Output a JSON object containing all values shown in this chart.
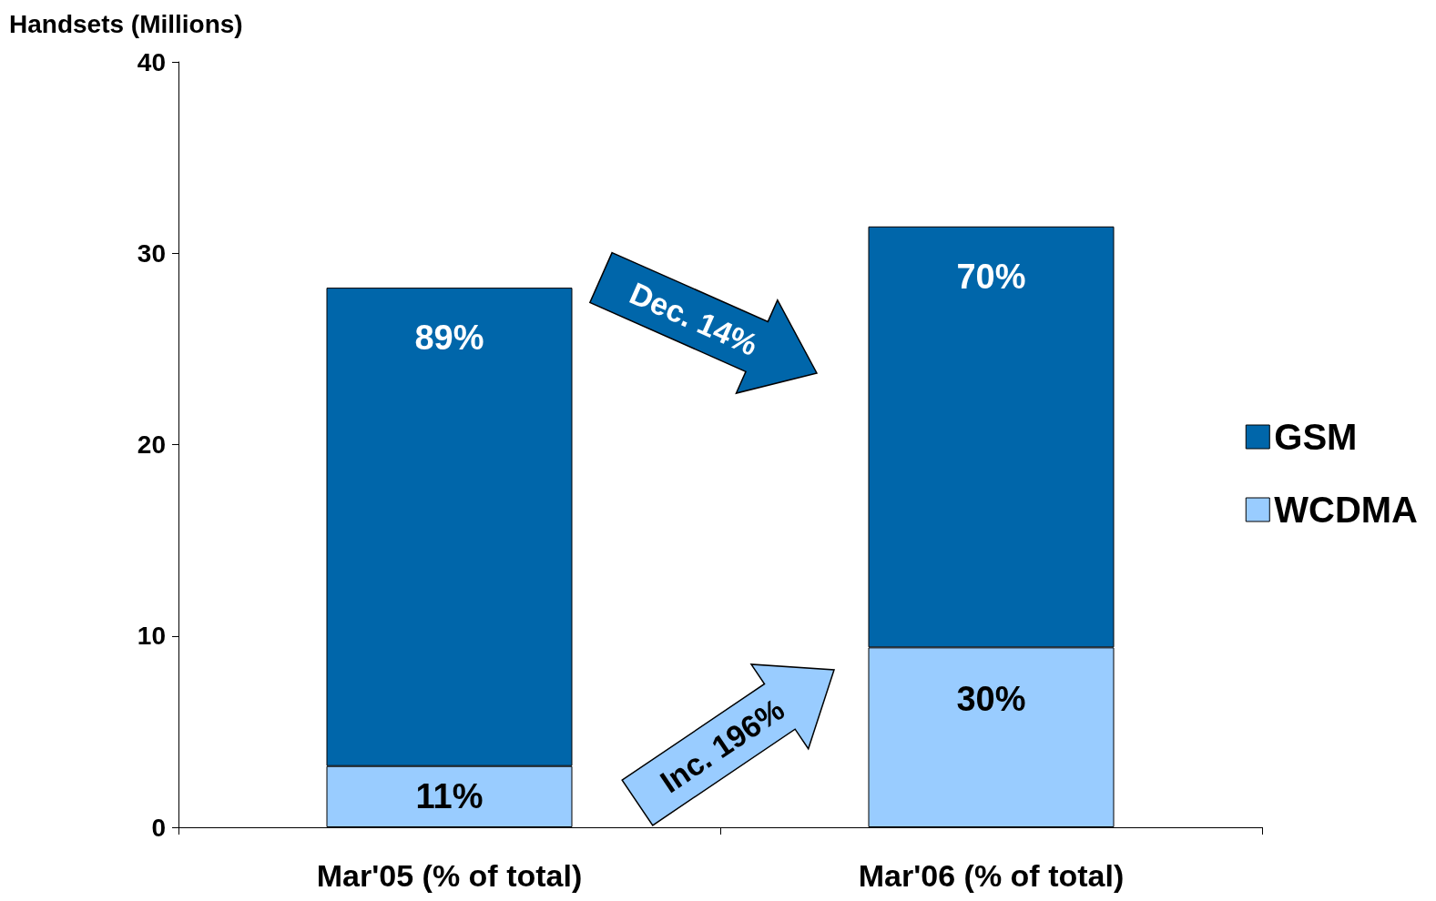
{
  "chart_data": {
    "type": "bar",
    "stacked": true,
    "ylabel": "Handsets (Millions)",
    "categories": [
      "Mar'05 (% of total)",
      "Mar'06 (% of total)"
    ],
    "series": [
      {
        "name": "WCDMA",
        "color": "#99ccff",
        "values": [
          3.2,
          9.4
        ]
      },
      {
        "name": "GSM",
        "color": "#0066aa",
        "values": [
          25.0,
          22.0
        ]
      }
    ],
    "ylim": [
      0,
      40
    ],
    "yticks": [
      0,
      10,
      20,
      30,
      40
    ],
    "grid": false,
    "legend": "right",
    "annotations": [
      "Dec. 14%",
      "Inc. 196%",
      "11%",
      "89%",
      "30%",
      "70%"
    ]
  }
}
